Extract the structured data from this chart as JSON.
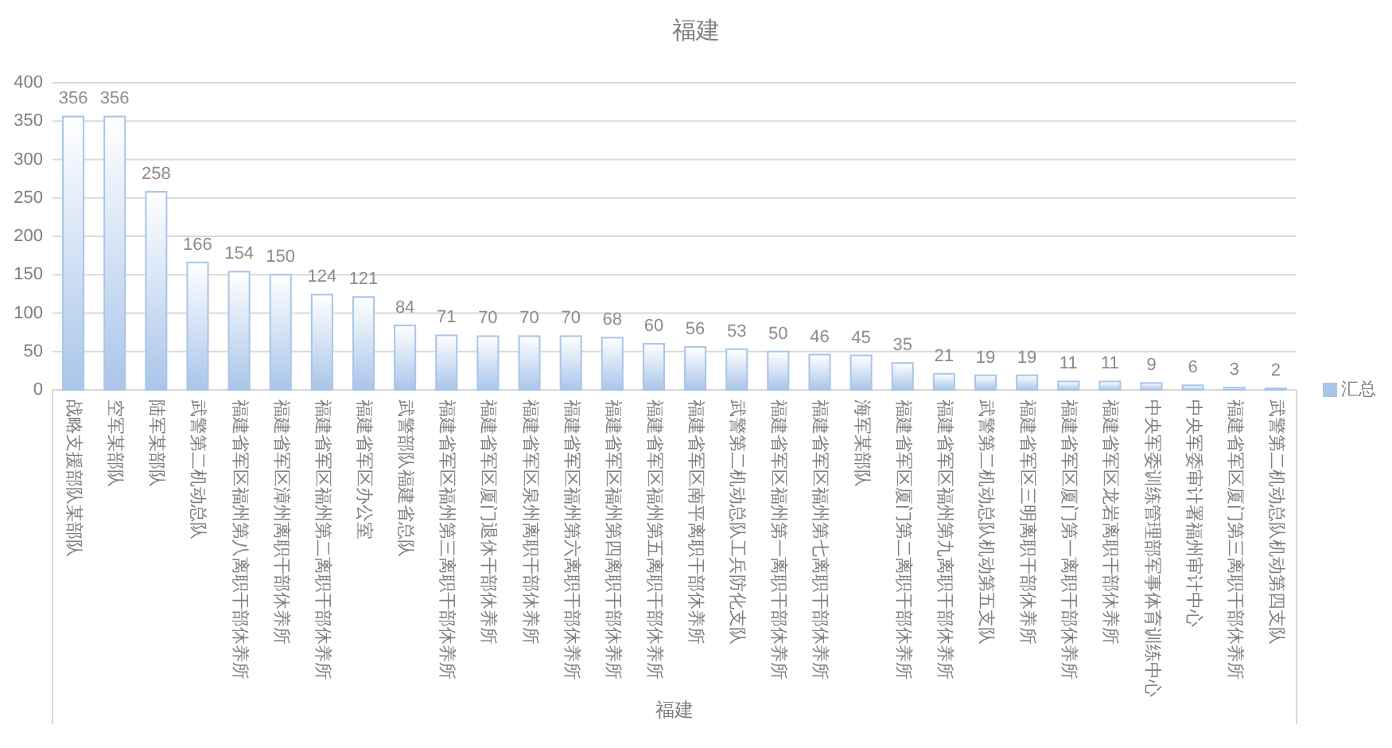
{
  "chart_data": {
    "type": "bar",
    "title": "福建",
    "xlabel": "福建",
    "categories": [
      "战略支援部队某部队",
      "空军某部队",
      "陆军某部队",
      "武警第二机动总队",
      "福建省军区福州第八离职干部休养所",
      "福建省军区漳州离职干部休养所",
      "福建省军区福州第二离职干部休养所",
      "福建省军区办公室",
      "武警部队福建省总队",
      "福建省军区福州第三离职干部休养所",
      "福建省军区厦门退休干部休养所",
      "福建省军区泉州离职干部休养所",
      "福建省军区福州第六离职干部休养所",
      "福建省军区福州第四离职干部休养所",
      "福建省军区福州第五离职干部休养所",
      "福建省军区南平离职干部休养所",
      "武警第二机动总队工兵防化支队",
      "福建省军区福州第一离职干部休养所",
      "福建省军区福州第七离职干部休养所",
      "海军某部队",
      "福建省军区厦门第二离职干部休养所",
      "福建省军区福州第九离职干部休养所",
      "武警第二机动总队机动第五支队",
      "福建省军区三明离职干部休养所",
      "福建省军区厦门第一离职干部休养所",
      "福建省军区龙岩离职干部休养所",
      "中央军委训练管理部军事体育训练中心",
      "中央军委审计署福州审计中心",
      "福建省军区厦门第三离职干部休养所",
      "武警第二机动总队机动第四支队"
    ],
    "series": [
      {
        "name": "汇总",
        "color": "#a9c5ea",
        "values": [
          356,
          356,
          258,
          166,
          154,
          150,
          124,
          121,
          84,
          71,
          70,
          70,
          70,
          68,
          60,
          56,
          53,
          50,
          46,
          45,
          35,
          21,
          19,
          19,
          11,
          11,
          9,
          6,
          3,
          2
        ]
      }
    ],
    "ylim": [
      0,
      400
    ],
    "yticks": [
      0,
      50,
      100,
      150,
      200,
      250,
      300,
      350,
      400
    ],
    "grid": "y",
    "legend": "right",
    "data_labels": true
  }
}
